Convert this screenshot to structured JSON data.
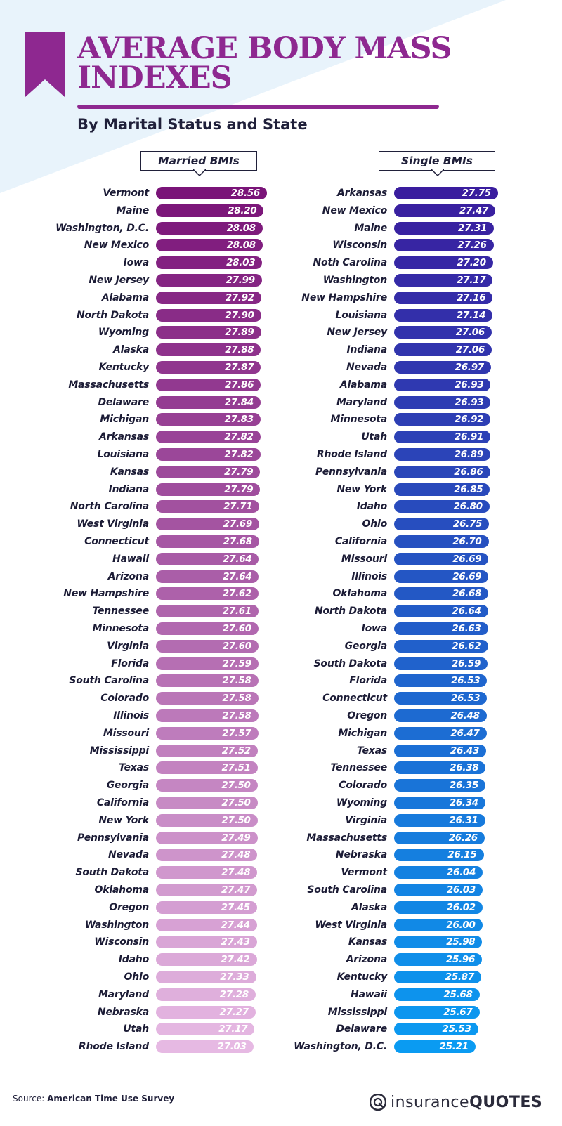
{
  "header": {
    "title_line1": "AVERAGE BODY MASS",
    "title_line2": "INDEXES",
    "subtitle": "By Marital Status and State"
  },
  "source": {
    "label": "Source: ",
    "name": "American Time Use Survey"
  },
  "logo": {
    "part1": "insurance",
    "part2": "QUOTES"
  },
  "colors": {
    "title": "#8e2890",
    "married_top": "#7a1478",
    "married_bottom": "#e6b9e3",
    "single_top": "#3a1d9e",
    "single_bottom": "#0a9bf2",
    "background_triangle": "#e8f3fb"
  },
  "chart_data": [
    {
      "type": "bar",
      "orientation": "horizontal",
      "title": "Married BMIs",
      "categories": [
        "Vermont",
        "Maine",
        "Washington, D.C.",
        "New Mexico",
        "Iowa",
        "New Jersey",
        "Alabama",
        "North Dakota",
        "Wyoming",
        "Alaska",
        "Kentucky",
        "Massachusetts",
        "Delaware",
        "Michigan",
        "Arkansas",
        "Louisiana",
        "Kansas",
        "Indiana",
        "North Carolina",
        "West Virginia",
        "Connecticut",
        "Hawaii",
        "Arizona",
        "New Hampshire",
        "Tennessee",
        "Minnesota",
        "Virginia",
        "Florida",
        "South Carolina",
        "Colorado",
        "Illinois",
        "Missouri",
        "Mississippi",
        "Texas",
        "Georgia",
        "California",
        "New York",
        "Pennsylvania",
        "Nevada",
        "South Dakota",
        "Oklahoma",
        "Oregon",
        "Washington",
        "Wisconsin",
        "Idaho",
        "Ohio",
        "Maryland",
        "Nebraska",
        "Utah",
        "Rhode Island"
      ],
      "values": [
        28.56,
        28.2,
        28.08,
        28.08,
        28.03,
        27.99,
        27.92,
        27.9,
        27.89,
        27.88,
        27.87,
        27.86,
        27.84,
        27.83,
        27.82,
        27.82,
        27.79,
        27.79,
        27.71,
        27.69,
        27.68,
        27.64,
        27.64,
        27.62,
        27.61,
        27.6,
        27.6,
        27.59,
        27.58,
        27.58,
        27.58,
        27.57,
        27.52,
        27.51,
        27.5,
        27.5,
        27.5,
        27.49,
        27.48,
        27.48,
        27.47,
        27.45,
        27.44,
        27.43,
        27.42,
        27.33,
        27.28,
        27.27,
        27.17,
        27.03
      ]
    },
    {
      "type": "bar",
      "orientation": "horizontal",
      "title": "Single BMIs",
      "categories": [
        "Arkansas",
        "New Mexico",
        "Maine",
        "Wisconsin",
        "Noth Carolina",
        "Washington",
        "New Hampshire",
        "Louisiana",
        "New Jersey",
        "Indiana",
        "Nevada",
        "Alabama",
        "Maryland",
        "Minnesota",
        "Utah",
        "Rhode Island",
        "Pennsylvania",
        "New York",
        "Idaho",
        "Ohio",
        "California",
        "Missouri",
        "Illinois",
        "Oklahoma",
        "North Dakota",
        "Iowa",
        "Georgia",
        "South Dakota",
        "Florida",
        "Connecticut",
        "Oregon",
        "Michigan",
        "Texas",
        "Tennessee",
        "Colorado",
        "Wyoming",
        "Virginia",
        "Massachusetts",
        "Nebraska",
        "Vermont",
        "South Carolina",
        "Alaska",
        "West Virginia",
        "Kansas",
        "Arizona",
        "Kentucky",
        "Hawaii",
        "Mississippi",
        "Delaware",
        "Washington, D.C."
      ],
      "values": [
        27.75,
        27.47,
        27.31,
        27.26,
        27.2,
        27.17,
        27.16,
        27.14,
        27.06,
        27.06,
        26.97,
        26.93,
        26.93,
        26.92,
        26.91,
        26.89,
        26.86,
        26.85,
        26.8,
        26.75,
        26.7,
        26.69,
        26.69,
        26.68,
        26.64,
        26.63,
        26.62,
        26.59,
        26.53,
        26.53,
        26.48,
        26.47,
        26.43,
        26.38,
        26.35,
        26.34,
        26.31,
        26.26,
        26.15,
        26.04,
        26.03,
        26.02,
        26.0,
        25.98,
        25.96,
        25.87,
        25.68,
        25.67,
        25.53,
        25.21
      ]
    }
  ]
}
